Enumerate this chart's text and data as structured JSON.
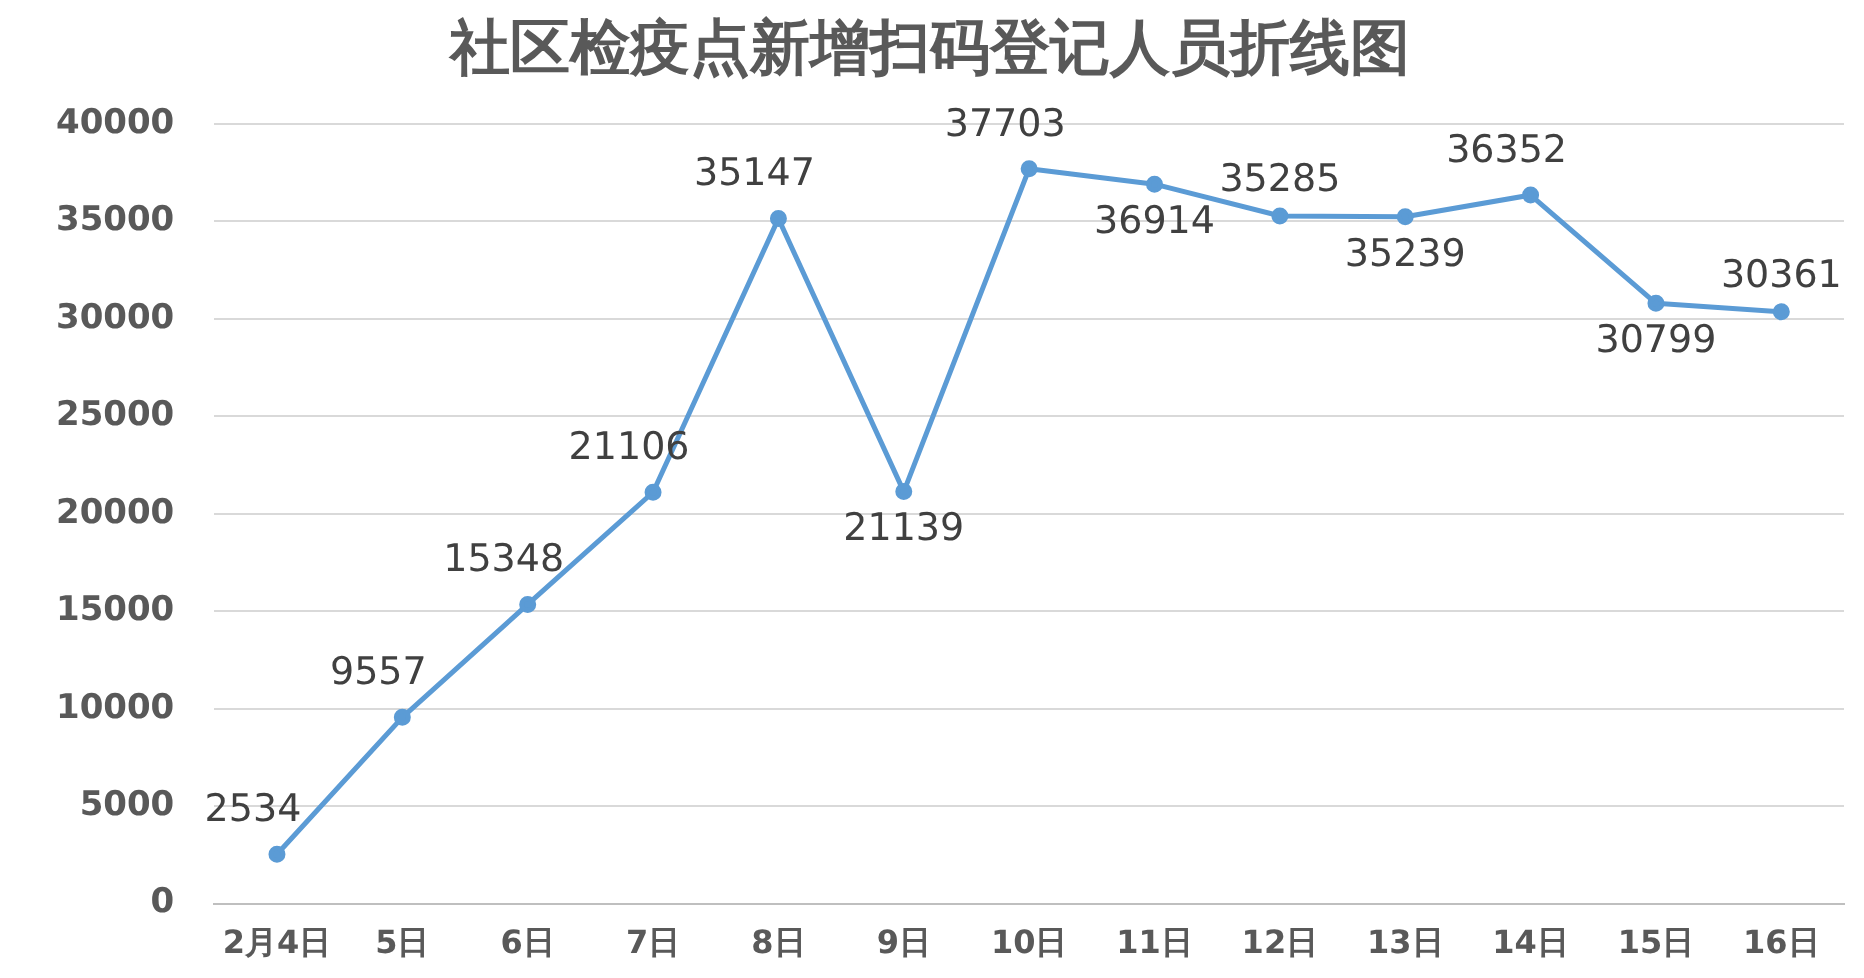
{
  "chart_data": {
    "type": "line",
    "title": "社区检疫点新增扫码登记人员折线图",
    "categories": [
      "2月4日",
      "5日",
      "6日",
      "7日",
      "8日",
      "9日",
      "10日",
      "11日",
      "12日",
      "13日",
      "14日",
      "15日",
      "16日"
    ],
    "series": [
      {
        "color": "#5b9bd5",
        "values": [
          2534,
          9557,
          15348,
          21106,
          35147,
          21139,
          37703,
          36914,
          35285,
          35239,
          36352,
          30799,
          30361
        ]
      }
    ],
    "ylim": [
      0,
      40000
    ],
    "yticks": [
      0,
      5000,
      10000,
      15000,
      20000,
      25000,
      30000,
      35000,
      40000
    ],
    "grid": "y",
    "legend": false,
    "marker": "circle",
    "line_style": "solid",
    "data_labels": true
  }
}
